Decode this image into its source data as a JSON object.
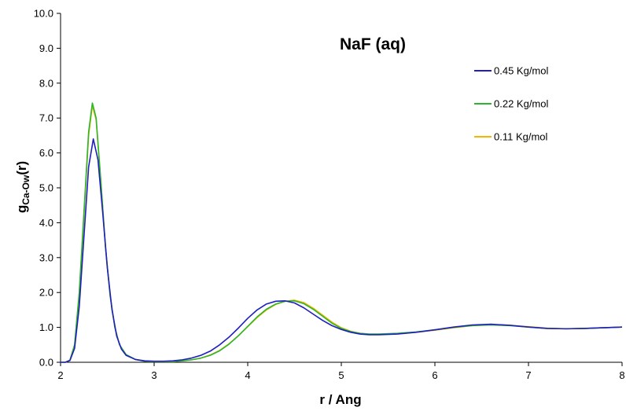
{
  "chart_data": {
    "type": "line",
    "title": "NaF (aq)",
    "xlabel": "r / Ang",
    "ylabel": {
      "main": "g",
      "subscript": "Ca-Ow",
      "suffix": "(r)"
    },
    "xlim": [
      2,
      8
    ],
    "ylim": [
      0,
      10
    ],
    "x_ticks": [
      "2",
      "3",
      "4",
      "5",
      "6",
      "7",
      "8"
    ],
    "y_ticks": [
      "0.0",
      "1.0",
      "2.0",
      "3.0",
      "4.0",
      "5.0",
      "6.0",
      "7.0",
      "8.0",
      "9.0",
      "10.0"
    ],
    "grid": false,
    "legend_position": "top-right",
    "series": [
      {
        "name": "0.45 Kg/mol",
        "color": "#1f1fbf",
        "points": [
          [
            2.0,
            0
          ],
          [
            2.05,
            0
          ],
          [
            2.1,
            0.05
          ],
          [
            2.15,
            0.4
          ],
          [
            2.2,
            1.6
          ],
          [
            2.25,
            3.6
          ],
          [
            2.3,
            5.6
          ],
          [
            2.35,
            6.4
          ],
          [
            2.4,
            5.8
          ],
          [
            2.45,
            4.3
          ],
          [
            2.5,
            2.7
          ],
          [
            2.55,
            1.5
          ],
          [
            2.6,
            0.75
          ],
          [
            2.65,
            0.38
          ],
          [
            2.7,
            0.2
          ],
          [
            2.8,
            0.08
          ],
          [
            2.9,
            0.04
          ],
          [
            3.0,
            0.03
          ],
          [
            3.1,
            0.03
          ],
          [
            3.2,
            0.04
          ],
          [
            3.3,
            0.07
          ],
          [
            3.4,
            0.12
          ],
          [
            3.5,
            0.2
          ],
          [
            3.6,
            0.32
          ],
          [
            3.7,
            0.5
          ],
          [
            3.8,
            0.72
          ],
          [
            3.9,
            0.98
          ],
          [
            4.0,
            1.26
          ],
          [
            4.1,
            1.5
          ],
          [
            4.2,
            1.67
          ],
          [
            4.3,
            1.75
          ],
          [
            4.4,
            1.76
          ],
          [
            4.5,
            1.7
          ],
          [
            4.6,
            1.56
          ],
          [
            4.7,
            1.38
          ],
          [
            4.8,
            1.2
          ],
          [
            4.9,
            1.05
          ],
          [
            5.0,
            0.94
          ],
          [
            5.1,
            0.86
          ],
          [
            5.2,
            0.81
          ],
          [
            5.3,
            0.79
          ],
          [
            5.4,
            0.79
          ],
          [
            5.6,
            0.81
          ],
          [
            5.8,
            0.86
          ],
          [
            6.0,
            0.93
          ],
          [
            6.2,
            1.01
          ],
          [
            6.4,
            1.07
          ],
          [
            6.6,
            1.09
          ],
          [
            6.8,
            1.06
          ],
          [
            7.0,
            1.01
          ],
          [
            7.2,
            0.97
          ],
          [
            7.4,
            0.96
          ],
          [
            7.6,
            0.97
          ],
          [
            7.8,
            0.99
          ],
          [
            8.0,
            1.01
          ]
        ]
      },
      {
        "name": "0.22 Kg/mol",
        "color": "#2db52d",
        "points": [
          [
            2.0,
            0
          ],
          [
            2.05,
            0
          ],
          [
            2.1,
            0.06
          ],
          [
            2.15,
            0.5
          ],
          [
            2.2,
            2.0
          ],
          [
            2.25,
            4.3
          ],
          [
            2.3,
            6.6
          ],
          [
            2.34,
            7.43
          ],
          [
            2.38,
            7.0
          ],
          [
            2.43,
            5.2
          ],
          [
            2.48,
            3.3
          ],
          [
            2.53,
            1.9
          ],
          [
            2.58,
            1.0
          ],
          [
            2.63,
            0.5
          ],
          [
            2.7,
            0.22
          ],
          [
            2.8,
            0.08
          ],
          [
            2.9,
            0.03
          ],
          [
            3.0,
            0.02
          ],
          [
            3.1,
            0.02
          ],
          [
            3.2,
            0.02
          ],
          [
            3.3,
            0.04
          ],
          [
            3.4,
            0.07
          ],
          [
            3.5,
            0.12
          ],
          [
            3.6,
            0.2
          ],
          [
            3.7,
            0.33
          ],
          [
            3.8,
            0.52
          ],
          [
            3.9,
            0.76
          ],
          [
            4.0,
            1.03
          ],
          [
            4.1,
            1.3
          ],
          [
            4.2,
            1.52
          ],
          [
            4.3,
            1.67
          ],
          [
            4.4,
            1.75
          ],
          [
            4.5,
            1.76
          ],
          [
            4.6,
            1.68
          ],
          [
            4.7,
            1.52
          ],
          [
            4.8,
            1.32
          ],
          [
            4.9,
            1.12
          ],
          [
            5.0,
            0.97
          ],
          [
            5.1,
            0.88
          ],
          [
            5.2,
            0.83
          ],
          [
            5.3,
            0.81
          ],
          [
            5.4,
            0.81
          ],
          [
            5.6,
            0.83
          ],
          [
            5.8,
            0.87
          ],
          [
            6.0,
            0.93
          ],
          [
            6.2,
            1.0
          ],
          [
            6.4,
            1.05
          ],
          [
            6.6,
            1.07
          ],
          [
            6.8,
            1.05
          ],
          [
            7.0,
            1.01
          ],
          [
            7.2,
            0.97
          ],
          [
            7.4,
            0.96
          ],
          [
            7.6,
            0.97
          ],
          [
            7.8,
            0.99
          ],
          [
            8.0,
            1.01
          ]
        ]
      },
      {
        "name": "0.11 Kg/mol",
        "color": "#f2b800",
        "points": [
          [
            2.0,
            0
          ],
          [
            2.05,
            0
          ],
          [
            2.1,
            0.06
          ],
          [
            2.15,
            0.5
          ],
          [
            2.2,
            2.0
          ],
          [
            2.25,
            4.2
          ],
          [
            2.3,
            6.5
          ],
          [
            2.34,
            7.35
          ],
          [
            2.38,
            6.95
          ],
          [
            2.43,
            5.2
          ],
          [
            2.48,
            3.3
          ],
          [
            2.53,
            1.9
          ],
          [
            2.58,
            1.0
          ],
          [
            2.63,
            0.5
          ],
          [
            2.7,
            0.22
          ],
          [
            2.8,
            0.08
          ],
          [
            2.9,
            0.03
          ],
          [
            3.0,
            0.02
          ],
          [
            3.1,
            0.02
          ],
          [
            3.2,
            0.02
          ],
          [
            3.3,
            0.04
          ],
          [
            3.4,
            0.07
          ],
          [
            3.5,
            0.12
          ],
          [
            3.6,
            0.21
          ],
          [
            3.7,
            0.34
          ],
          [
            3.8,
            0.53
          ],
          [
            3.9,
            0.76
          ],
          [
            4.0,
            1.02
          ],
          [
            4.1,
            1.28
          ],
          [
            4.2,
            1.5
          ],
          [
            4.3,
            1.66
          ],
          [
            4.4,
            1.75
          ],
          [
            4.5,
            1.78
          ],
          [
            4.6,
            1.71
          ],
          [
            4.7,
            1.55
          ],
          [
            4.8,
            1.35
          ],
          [
            4.9,
            1.15
          ],
          [
            5.0,
            0.99
          ],
          [
            5.1,
            0.89
          ],
          [
            5.2,
            0.83
          ],
          [
            5.3,
            0.8
          ],
          [
            5.4,
            0.8
          ],
          [
            5.6,
            0.82
          ],
          [
            5.8,
            0.86
          ],
          [
            6.0,
            0.92
          ],
          [
            6.2,
            0.99
          ],
          [
            6.4,
            1.05
          ],
          [
            6.6,
            1.08
          ],
          [
            6.8,
            1.06
          ],
          [
            7.0,
            1.02
          ],
          [
            7.2,
            0.98
          ],
          [
            7.4,
            0.96
          ],
          [
            7.6,
            0.97
          ],
          [
            7.8,
            0.99
          ],
          [
            8.0,
            1.01
          ]
        ]
      }
    ]
  }
}
